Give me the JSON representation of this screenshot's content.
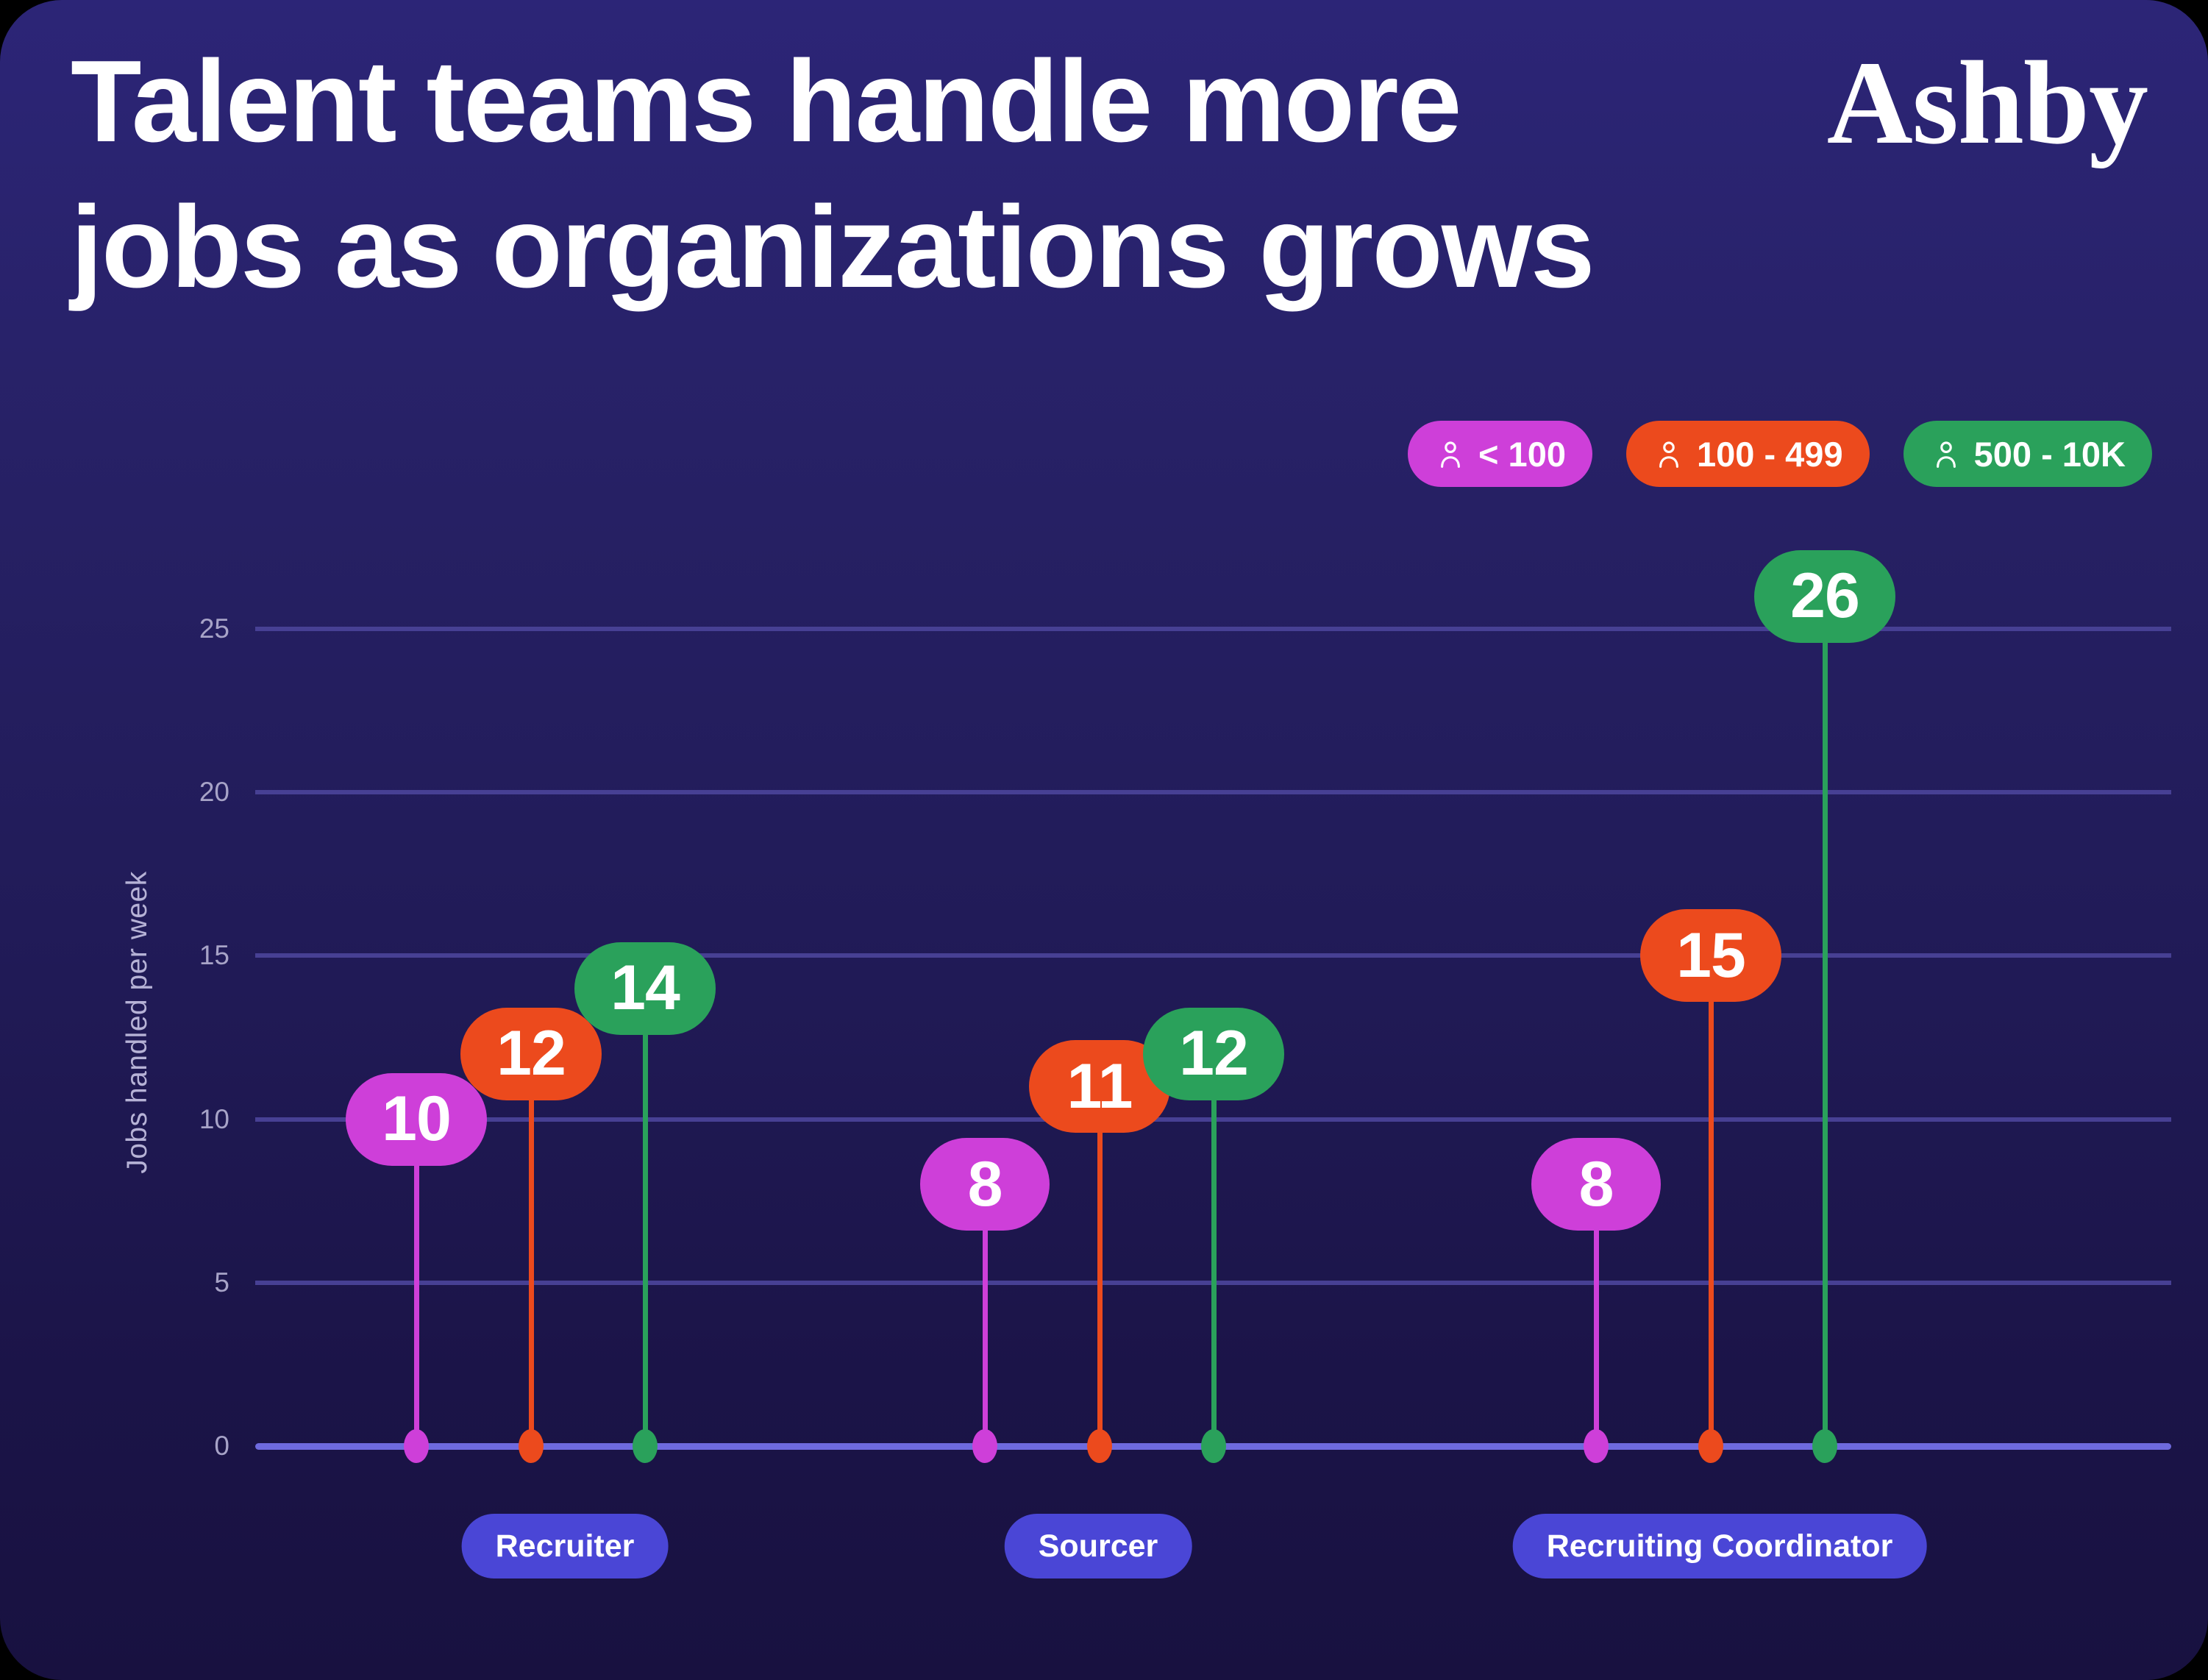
{
  "page": {
    "outer_background": "#000000",
    "card_gradient_top": "#2c2577",
    "card_gradient_bottom": "#181140",
    "gridline_color": "#474094",
    "axis_line_color": "#6e6ade",
    "category_pill_color": "#4a46d6",
    "tick_label_color": "#a7a3c7"
  },
  "header": {
    "title_line1": "Talent teams handle more",
    "title_line2": "jobs as organizations grows",
    "logo_text": "Ashby"
  },
  "legend": {
    "items": [
      {
        "label": "< 100",
        "color": "#ce3fd9",
        "icon": "person-icon"
      },
      {
        "label": "100 - 499",
        "color": "#ec4a1d",
        "icon": "person-icon"
      },
      {
        "label": "500 - 10K",
        "color": "#2aa15b",
        "icon": "person-icon"
      }
    ]
  },
  "chart_data": {
    "type": "lollipop",
    "title": "Talent teams handle more jobs as organizations grows",
    "categories": [
      "Recruiter",
      "Sourcer",
      "Recruiting Coordinator"
    ],
    "series": [
      {
        "name": "< 100",
        "color": "#ce3fd9",
        "values": [
          10,
          8,
          8
        ]
      },
      {
        "name": "100 - 499",
        "color": "#ec4a1d",
        "values": [
          12,
          11,
          15
        ]
      },
      {
        "name": "500 - 10K",
        "color": "#2aa15b",
        "values": [
          14,
          12,
          26
        ]
      }
    ],
    "xlabel": "",
    "ylabel": "Jobs handled per week",
    "yticks": [
      0,
      5,
      10,
      15,
      20,
      25
    ],
    "ylim": [
      0,
      27
    ],
    "grid": true,
    "legend_position": "top-right"
  }
}
